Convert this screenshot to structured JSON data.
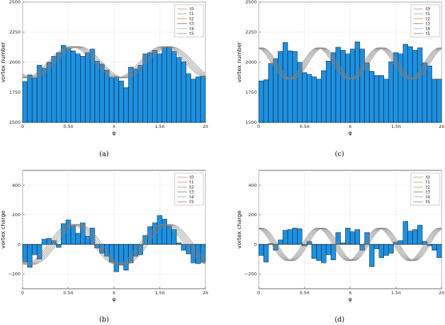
{
  "figure": {
    "captions": [
      "(a)",
      "(c)",
      "(b)",
      "(d)"
    ]
  },
  "chart_data": [
    {
      "type": "bar",
      "panel": "a",
      "xlabel": "φ",
      "ylabel": "vortex number",
      "xticks": [
        "0",
        "0.5π",
        "π",
        "1.5π",
        "2π"
      ],
      "yticks": [
        "1500",
        "1750",
        "2000",
        "2250",
        "2500"
      ],
      "ylim": [
        1500,
        2500
      ],
      "baseline": 1500,
      "bar_color": "#1e90e0",
      "legend": [
        "t0",
        "t1",
        "t2",
        "t3",
        "t4",
        "t5"
      ],
      "legend_colors": [
        "#e39b87",
        "#9cc29a",
        "#c9b26a",
        "#7d8fb8",
        "#8fc9b3",
        "#b58ab0"
      ],
      "legend_position": "top-right",
      "grid": true,
      "curves": {
        "mean": 2000,
        "amp": 130,
        "freq": 2,
        "phase0": 0.55,
        "phase_step": 0.12,
        "count": 6
      },
      "values": [
        1840,
        1895,
        1870,
        1975,
        1950,
        2000,
        2050,
        2080,
        2140,
        2115,
        2095,
        2070,
        2050,
        2080,
        2110,
        2010,
        1985,
        1935,
        1875,
        1880,
        1845,
        1790,
        1960,
        1945,
        1975,
        2070,
        2080,
        2100,
        2070,
        2120,
        2130,
        2090,
        2040,
        2005,
        1905,
        1860,
        1880,
        1885
      ]
    },
    {
      "type": "bar",
      "panel": "c",
      "xlabel": "φ",
      "ylabel": "vortex number",
      "xticks": [
        "0",
        "0.5π",
        "π",
        "1.5π",
        "2π"
      ],
      "yticks": [
        "1500",
        "1750",
        "2000",
        "2250",
        "2500"
      ],
      "ylim": [
        1500,
        2500
      ],
      "baseline": 1500,
      "bar_color": "#1e90e0",
      "legend": [
        "t0",
        "t1",
        "t2",
        "t3",
        "t4",
        "t5"
      ],
      "legend_colors": [
        "#e39b87",
        "#9cc29a",
        "#c9b26a",
        "#7d8fb8",
        "#8fc9b3",
        "#b58ab0"
      ],
      "legend_position": "top-right",
      "grid": true,
      "curves": {
        "mean": 1990,
        "amp": 130,
        "freq": 3,
        "phase0": 0.95,
        "phase_step": 0.12,
        "count": 6
      },
      "values": [
        1845,
        1855,
        1990,
        2030,
        2090,
        2165,
        2095,
        2090,
        2000,
        1915,
        1900,
        1880,
        1860,
        1930,
        2010,
        2080,
        2125,
        2100,
        2070,
        2110,
        2170,
        2110,
        1995,
        1925,
        1890,
        1890,
        1860,
        2005,
        2080,
        2070,
        2150,
        2130,
        2100,
        2120,
        1995,
        1970,
        1860,
        1860
      ]
    },
    {
      "type": "bar",
      "panel": "b",
      "xlabel": "φ",
      "ylabel": "vortex charge",
      "xticks": [
        "0",
        "0.5π",
        "π",
        "1.5π",
        "2π"
      ],
      "yticks": [
        "−200",
        "0",
        "200",
        "400"
      ],
      "ylim": [
        -300,
        500
      ],
      "baseline": 0,
      "bar_color": "#1e90e0",
      "legend": [
        "t0",
        "t1",
        "t2",
        "t3",
        "t4",
        "t5"
      ],
      "legend_colors": [
        "#e39b87",
        "#9cc29a",
        "#c9b26a",
        "#7d8fb8",
        "#8fc9b3",
        "#b58ab0"
      ],
      "legend_position": "top-right",
      "grid": true,
      "curves": {
        "mean": 0,
        "amp": 135,
        "freq": 2,
        "phase0": 0.55,
        "phase_step": 0.12,
        "count": 6
      },
      "values": [
        -120,
        -155,
        -70,
        -100,
        35,
        40,
        25,
        -20,
        140,
        165,
        125,
        75,
        145,
        55,
        110,
        -25,
        -60,
        -80,
        -120,
        -185,
        -140,
        -175,
        -125,
        -80,
        -70,
        60,
        120,
        145,
        195,
        170,
        125,
        100,
        10,
        -40,
        -65,
        -125,
        -130,
        -120
      ]
    },
    {
      "type": "bar",
      "panel": "d",
      "xlabel": "φ",
      "ylabel": "vortex charge",
      "xticks": [
        "0",
        "0.5π",
        "π",
        "1.5π",
        "2π"
      ],
      "yticks": [
        "−200",
        "0",
        "200",
        "400"
      ],
      "ylim": [
        -300,
        500
      ],
      "baseline": 0,
      "bar_color": "#1e90e0",
      "legend": [
        "t0",
        "t1",
        "t2",
        "t3",
        "t4",
        "t5"
      ],
      "legend_colors": [
        "#e39b87",
        "#9cc29a",
        "#c9b26a",
        "#7d8fb8",
        "#8fc9b3",
        "#b58ab0"
      ],
      "legend_position": "top-right",
      "grid": true,
      "curves": {
        "mean": 0,
        "amp": 110,
        "freq": 3,
        "phase0": 0.95,
        "phase_step": 0.12,
        "count": 6
      },
      "values": [
        -75,
        -120,
        5,
        -40,
        30,
        95,
        100,
        110,
        105,
        -10,
        20,
        -95,
        -110,
        -125,
        -70,
        -105,
        80,
        10,
        110,
        85,
        100,
        -40,
        80,
        -150,
        -30,
        -90,
        -75,
        -60,
        15,
        25,
        155,
        90,
        100,
        130,
        20,
        -10,
        -40,
        -90
      ]
    }
  ]
}
